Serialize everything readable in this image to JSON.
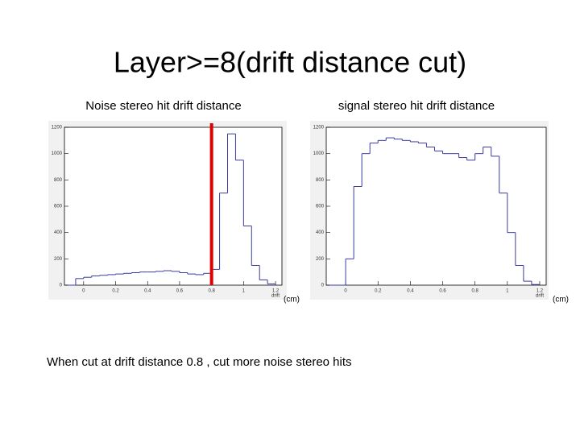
{
  "title": "Layer>=8(drift distance cut)",
  "note": "When cut at drift distance 0.8 , cut more noise stereo hits",
  "chart_data": [
    {
      "type": "histogram",
      "title": "Noise stereo hit drift distance",
      "x_label": "drift",
      "unit_label": "(cm)",
      "color": "#3a3aa0",
      "bins": [
        -0.1,
        -0.05,
        0,
        0.05,
        0.1,
        0.15,
        0.2,
        0.25,
        0.3,
        0.35,
        0.4,
        0.45,
        0.5,
        0.55,
        0.6,
        0.65,
        0.7,
        0.75,
        0.8,
        0.85,
        0.9,
        0.95,
        1.0,
        1.05,
        1.1,
        1.15,
        1.2
      ],
      "values": [
        0,
        50,
        60,
        70,
        75,
        80,
        85,
        90,
        95,
        100,
        100,
        105,
        110,
        105,
        95,
        85,
        80,
        90,
        120,
        700,
        1150,
        950,
        450,
        150,
        40,
        10
      ],
      "cut_x": 0.8,
      "cut_color": "#e00000",
      "xlim": [
        -0.12,
        1.24
      ],
      "ylim": [
        0,
        1200
      ],
      "xticks": [
        0,
        0.2,
        0.4,
        0.6,
        0.8,
        1,
        1.2
      ],
      "yticks": [
        0,
        200,
        400,
        600,
        800,
        1000,
        1200
      ]
    },
    {
      "type": "histogram",
      "title": "signal stereo hit drift distance",
      "x_label": "drift",
      "unit_label": "(cm)",
      "color": "#3a3aa0",
      "bins": [
        -0.1,
        -0.05,
        0,
        0.05,
        0.1,
        0.15,
        0.2,
        0.25,
        0.3,
        0.35,
        0.4,
        0.45,
        0.5,
        0.55,
        0.6,
        0.65,
        0.7,
        0.75,
        0.8,
        0.85,
        0.9,
        0.95,
        1.0,
        1.05,
        1.1,
        1.15,
        1.2
      ],
      "values": [
        0,
        0,
        200,
        750,
        1000,
        1080,
        1100,
        1120,
        1110,
        1100,
        1090,
        1080,
        1050,
        1020,
        1000,
        1000,
        970,
        950,
        1000,
        1050,
        980,
        700,
        400,
        150,
        30,
        5
      ],
      "xlim": [
        -0.12,
        1.24
      ],
      "ylim": [
        0,
        1200
      ],
      "xticks": [
        0,
        0.2,
        0.4,
        0.6,
        0.8,
        1,
        1.2
      ],
      "yticks": [
        0,
        200,
        400,
        600,
        800,
        1000,
        1200
      ]
    }
  ]
}
